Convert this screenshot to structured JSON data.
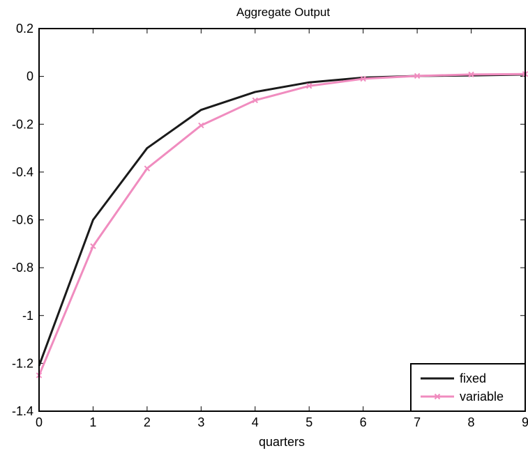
{
  "chart_data": {
    "type": "line",
    "title": "Aggregate Output",
    "xlabel": "quarters",
    "ylabel": "",
    "xlim": [
      0,
      9
    ],
    "ylim": [
      -1.4,
      0.2
    ],
    "xticks": [
      "0",
      "1",
      "2",
      "3",
      "4",
      "5",
      "6",
      "7",
      "8",
      "9"
    ],
    "yticks": [
      "0.2",
      "0",
      "-0.2",
      "-0.4",
      "-0.6",
      "-0.8",
      "-1",
      "-1.2",
      "-1.4"
    ],
    "grid": false,
    "legend_position": "bottom-right",
    "x": [
      0,
      1,
      2,
      3,
      4,
      5,
      6,
      7,
      8,
      9
    ],
    "series": [
      {
        "name": "fixed",
        "color": "#1a1a1a",
        "marker": "none",
        "values": [
          -1.21,
          -0.6,
          -0.3,
          -0.14,
          -0.065,
          -0.025,
          -0.005,
          0.002,
          0.004,
          0.008
        ]
      },
      {
        "name": "variable",
        "color": "#f08cbf",
        "marker": "x",
        "values": [
          -1.25,
          -0.71,
          -0.385,
          -0.205,
          -0.1,
          -0.04,
          -0.01,
          0.002,
          0.008,
          0.01
        ]
      }
    ]
  }
}
